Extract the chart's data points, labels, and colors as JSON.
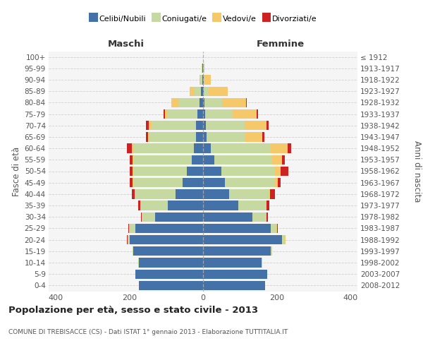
{
  "age_groups": [
    "100+",
    "95-99",
    "90-94",
    "85-89",
    "80-84",
    "75-79",
    "70-74",
    "65-69",
    "60-64",
    "55-59",
    "50-54",
    "45-49",
    "40-44",
    "35-39",
    "30-34",
    "25-29",
    "20-24",
    "15-19",
    "10-14",
    "5-9",
    "0-4"
  ],
  "birth_years": [
    "≤ 1912",
    "1913-1917",
    "1918-1922",
    "1923-1927",
    "1928-1932",
    "1933-1937",
    "1938-1942",
    "1943-1947",
    "1948-1952",
    "1953-1957",
    "1958-1962",
    "1963-1967",
    "1968-1972",
    "1973-1977",
    "1978-1982",
    "1983-1987",
    "1988-1992",
    "1993-1997",
    "1998-2002",
    "2003-2007",
    "2008-2012"
  ],
  "maschi_celibe": [
    0,
    1,
    2,
    5,
    10,
    15,
    20,
    20,
    25,
    30,
    45,
    55,
    75,
    95,
    130,
    185,
    200,
    190,
    175,
    185,
    175
  ],
  "maschi_coniugato": [
    0,
    2,
    5,
    18,
    55,
    80,
    120,
    125,
    165,
    160,
    145,
    135,
    110,
    75,
    35,
    15,
    5,
    2,
    1,
    0,
    0
  ],
  "maschi_vedovo": [
    0,
    1,
    3,
    14,
    22,
    8,
    7,
    5,
    3,
    2,
    2,
    1,
    1,
    1,
    1,
    1,
    1,
    0,
    0,
    0,
    0
  ],
  "maschi_divorziato": [
    0,
    0,
    0,
    0,
    0,
    5,
    8,
    5,
    14,
    8,
    8,
    8,
    8,
    5,
    3,
    2,
    1,
    0,
    0,
    0,
    0
  ],
  "femmine_celibe": [
    0,
    0,
    1,
    2,
    4,
    5,
    8,
    10,
    22,
    30,
    50,
    60,
    70,
    95,
    135,
    185,
    215,
    185,
    160,
    175,
    168
  ],
  "femmine_coniugato": [
    0,
    1,
    3,
    14,
    48,
    75,
    105,
    105,
    162,
    158,
    145,
    135,
    108,
    75,
    35,
    15,
    8,
    2,
    1,
    0,
    0
  ],
  "femmine_vedovo": [
    0,
    2,
    18,
    52,
    65,
    65,
    60,
    46,
    46,
    26,
    16,
    8,
    5,
    3,
    2,
    1,
    1,
    0,
    0,
    0,
    0
  ],
  "femmine_divorziato": [
    0,
    0,
    0,
    0,
    2,
    5,
    5,
    5,
    9,
    9,
    22,
    8,
    12,
    7,
    4,
    2,
    1,
    0,
    0,
    0,
    0
  ],
  "colors_celibe": "#4472a8",
  "colors_coniugato": "#c5d9a0",
  "colors_vedovo": "#f5c96a",
  "colors_divorziato": "#cc2222",
  "legend_labels": [
    "Celibi/Nubili",
    "Coniugati/e",
    "Vedovi/e",
    "Divorziati/e"
  ],
  "title": "Popolazione per età, sesso e stato civile - 2013",
  "subtitle": "COMUNE DI TREBISACCE (CS) - Dati ISTAT 1° gennaio 2013 - Elaborazione TUTTITALIA.IT",
  "ylabel_left": "Fasce di età",
  "ylabel_right": "Anni di nascita",
  "label_maschi": "Maschi",
  "label_femmine": "Femmine",
  "xlim": 420,
  "bg_color": "#ffffff",
  "plot_bg_color": "#f5f5f5"
}
